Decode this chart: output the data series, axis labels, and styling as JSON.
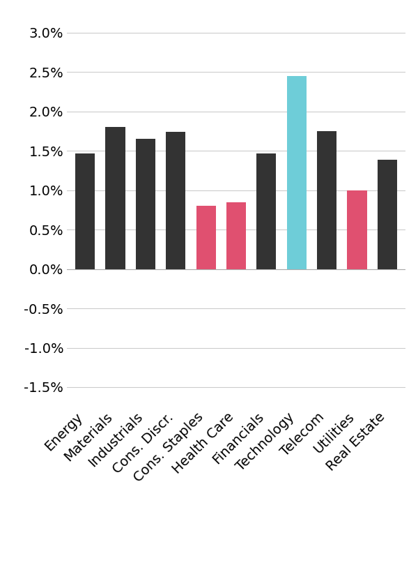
{
  "categories": [
    "Energy",
    "Materials",
    "Industrials",
    "Cons. Discr.",
    "Cons. Staples",
    "Health Care",
    "Financials",
    "Technology",
    "Telecom",
    "Utilities",
    "Real Estate"
  ],
  "values": [
    0.0147,
    0.018,
    0.0165,
    0.0174,
    0.008,
    0.0085,
    0.0147,
    0.0245,
    0.0175,
    0.01,
    0.0139
  ],
  "bar_colors": [
    "#333333",
    "#333333",
    "#333333",
    "#333333",
    "#e05070",
    "#e05070",
    "#333333",
    "#6ecdd8",
    "#333333",
    "#e05070",
    "#333333"
  ],
  "ylim": [
    -0.0175,
    0.032
  ],
  "yticks": [
    -0.015,
    -0.01,
    -0.005,
    0.0,
    0.005,
    0.01,
    0.015,
    0.02,
    0.025,
    0.03
  ],
  "ytick_labels": [
    "-1.5%",
    "-1.0%",
    "-0.5%",
    "0.0%",
    "0.5%",
    "1.0%",
    "1.5%",
    "2.0%",
    "2.5%",
    "3.0%"
  ],
  "background_color": "#ffffff",
  "grid_color": "#cccccc",
  "bar_width": 0.65,
  "label_fontsize": 14,
  "tick_fontsize": 14
}
